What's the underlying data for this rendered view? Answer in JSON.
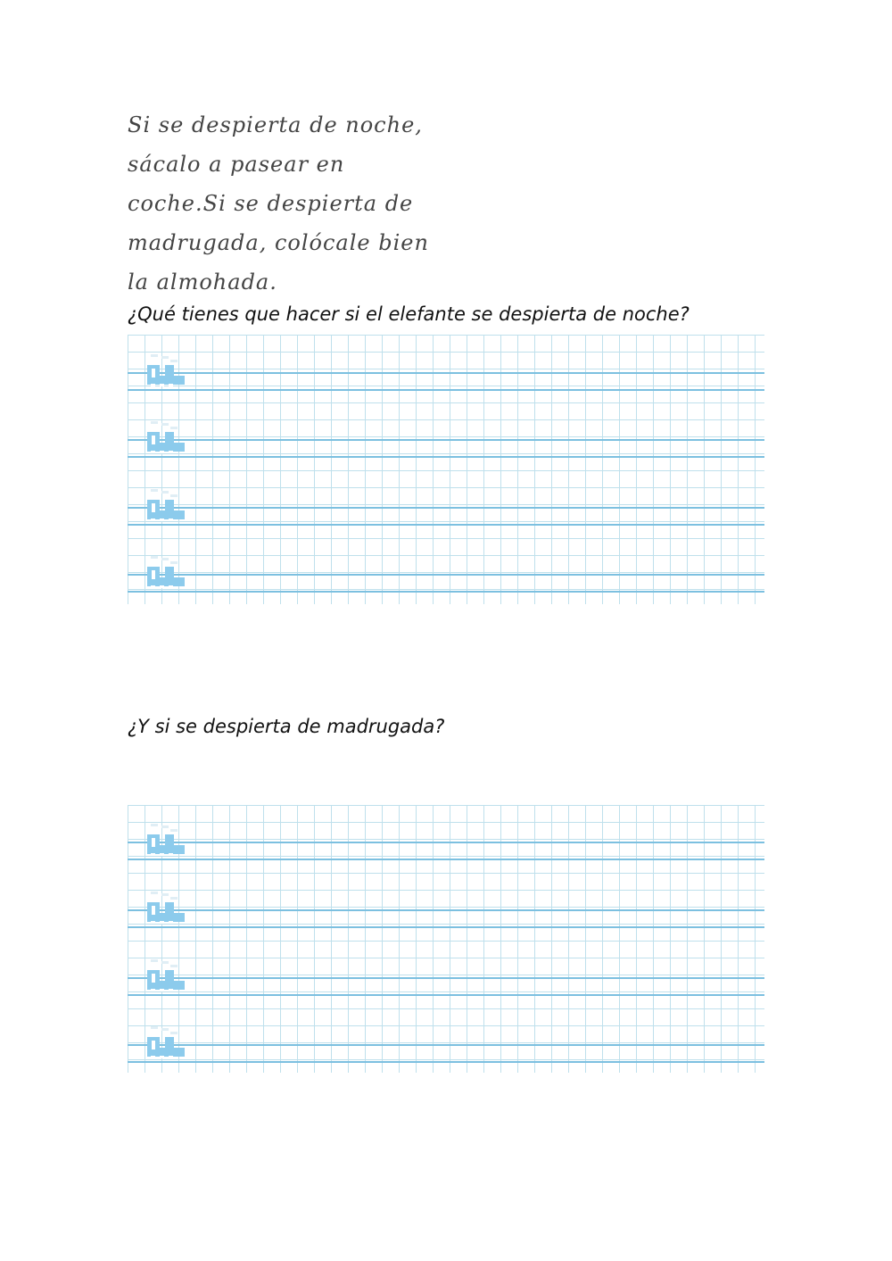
{
  "poem": [
    "Si se despierta de noche,",
    "sácalo a pasear en",
    "coche.Si se despierta de",
    "madrugada, colócale bien",
    "la almohada."
  ],
  "question1": "¿Qué tienes que hacer si el elefante se despierta de noche?",
  "question2": "¿Y si se despierta de madrugada?",
  "grid_color": "#bfe0ec",
  "line_color": "#7cc0e0",
  "icon": "train-icon"
}
